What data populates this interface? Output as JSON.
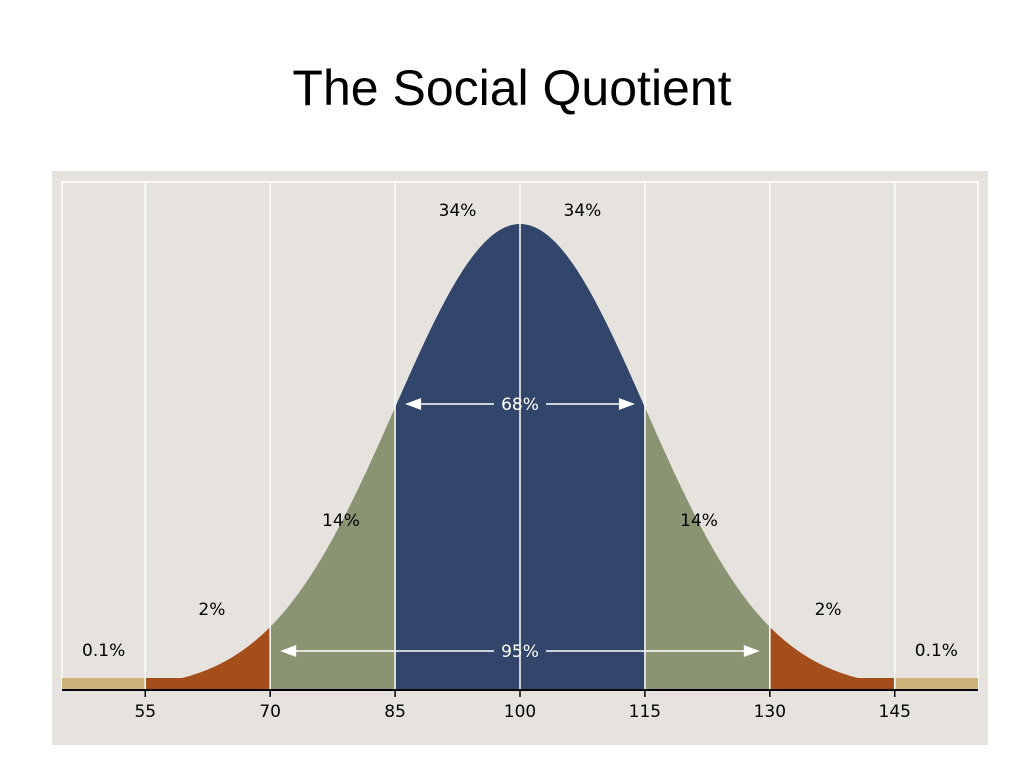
{
  "page": {
    "title": "The Social Quotient"
  },
  "colors": {
    "background": "#e6e3de",
    "grid": "#ffffff",
    "center": "#32466b",
    "one_sd": "#8a9472",
    "two_sd": "#a44e1c",
    "three_sd": "#cdb27a",
    "axis": "#000000",
    "text": "#000000",
    "inner_text": "#ffffff"
  },
  "chart_data": {
    "type": "area",
    "title": "",
    "xlabel": "",
    "ylabel": "",
    "distribution": "normal",
    "mean": 100,
    "sd": 15,
    "xlim": [
      45,
      155
    ],
    "xticks": [
      "55",
      "70",
      "85",
      "100",
      "115",
      "130",
      "145"
    ],
    "grid": true,
    "bands": [
      {
        "from": 45,
        "to": 55,
        "percent": "0.1%",
        "color": "#cdb27a"
      },
      {
        "from": 55,
        "to": 70,
        "percent": "2%",
        "color": "#a44e1c"
      },
      {
        "from": 70,
        "to": 85,
        "percent": "14%",
        "color": "#8a9472"
      },
      {
        "from": 85,
        "to": 100,
        "percent": "34%",
        "color": "#32466b"
      },
      {
        "from": 100,
        "to": 115,
        "percent": "34%",
        "color": "#32466b"
      },
      {
        "from": 115,
        "to": 130,
        "percent": "14%",
        "color": "#8a9472"
      },
      {
        "from": 130,
        "to": 145,
        "percent": "2%",
        "color": "#a44e1c"
      },
      {
        "from": 145,
        "to": 155,
        "percent": "0.1%",
        "color": "#cdb27a"
      }
    ],
    "ranges": [
      {
        "from": 85,
        "to": 115,
        "label": "68%"
      },
      {
        "from": 70,
        "to": 130,
        "label": "95%"
      }
    ]
  }
}
